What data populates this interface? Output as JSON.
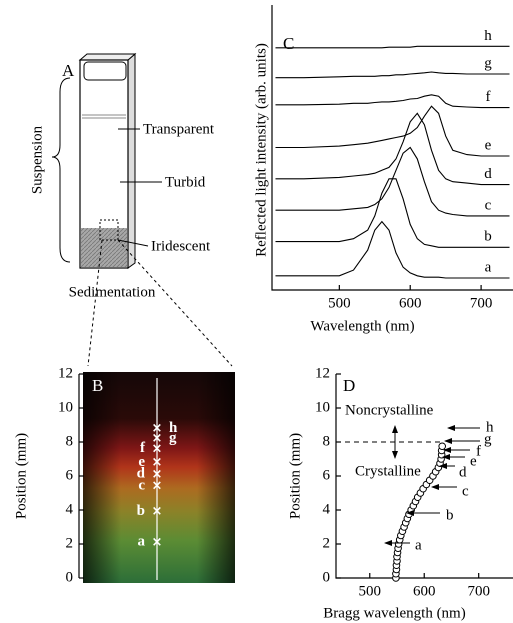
{
  "diagram": {
    "panel_label": "A",
    "transparent": "Transparent",
    "turbid": "Turbid",
    "iridescent": "Iridescent",
    "suspension": "Suspension",
    "sedimentation": "Sedimentation"
  },
  "chart_data": [
    {
      "type": "image",
      "panel_label": "B",
      "ylabel": "Position (mm)",
      "ylim": [
        0,
        12
      ],
      "yticks": [
        0,
        2,
        4,
        6,
        8,
        10,
        12
      ],
      "categories": [
        "a",
        "b",
        "c",
        "d",
        "e",
        "f",
        "g",
        "h"
      ],
      "values": [
        2.1,
        3.9,
        5.4,
        6.1,
        6.8,
        7.6,
        8.2,
        8.8
      ]
    },
    {
      "type": "line",
      "panel_label": "C",
      "xlabel": "Wavelength (nm)",
      "ylabel": "Reflected light intensity (arb. units)",
      "xlim": [
        405,
        745
      ],
      "xticks": [
        500,
        600,
        700
      ],
      "ylim": [
        0,
        10
      ],
      "x": [
        410,
        450,
        500,
        520,
        540,
        550,
        560,
        570,
        580,
        590,
        600,
        610,
        620,
        630,
        640,
        650,
        660,
        680,
        700,
        740
      ],
      "series": [
        {
          "name": "a",
          "color": "#000000",
          "values": [
            0.5,
            0.5,
            0.5,
            0.7,
            1.4,
            2.1,
            2.4,
            2.1,
            1.3,
            0.8,
            0.6,
            0.5,
            0.45,
            0.45,
            0.45,
            0.42,
            0.42,
            0.42,
            0.42,
            0.42
          ]
        },
        {
          "name": "b",
          "color": "#000000",
          "values": [
            1.7,
            1.7,
            1.7,
            1.8,
            2.1,
            2.6,
            3.4,
            3.9,
            3.9,
            3.2,
            2.3,
            1.8,
            1.6,
            1.55,
            1.5,
            1.5,
            1.5,
            1.5,
            1.5,
            1.5
          ]
        },
        {
          "name": "c",
          "color": "#000000",
          "values": [
            2.8,
            2.8,
            2.8,
            2.85,
            2.9,
            3.0,
            3.2,
            3.6,
            4.2,
            4.8,
            5.0,
            4.6,
            3.8,
            3.1,
            2.8,
            2.7,
            2.65,
            2.6,
            2.6,
            2.6
          ]
        },
        {
          "name": "d",
          "color": "#000000",
          "values": [
            3.9,
            3.9,
            3.95,
            4.0,
            4.05,
            4.1,
            4.2,
            4.3,
            4.6,
            5.2,
            5.9,
            6.2,
            5.8,
            4.9,
            4.2,
            3.9,
            3.8,
            3.75,
            3.7,
            3.7
          ]
        },
        {
          "name": "e",
          "color": "#000000",
          "values": [
            5.0,
            5.0,
            5.05,
            5.1,
            5.15,
            5.2,
            5.25,
            5.3,
            5.35,
            5.4,
            5.5,
            5.7,
            6.1,
            6.45,
            6.2,
            5.4,
            4.9,
            4.75,
            4.7,
            4.7
          ]
        },
        {
          "name": "f",
          "color": "#000000",
          "values": [
            6.5,
            6.5,
            6.52,
            6.55,
            6.55,
            6.58,
            6.6,
            6.6,
            6.62,
            6.65,
            6.7,
            6.72,
            6.8,
            6.85,
            6.8,
            6.55,
            6.45,
            6.42,
            6.4,
            6.4
          ]
        },
        {
          "name": "g",
          "color": "#000000",
          "values": [
            7.45,
            7.45,
            7.48,
            7.5,
            7.5,
            7.5,
            7.52,
            7.52,
            7.55,
            7.55,
            7.58,
            7.6,
            7.62,
            7.65,
            7.62,
            7.6,
            7.6,
            7.58,
            7.58,
            7.58
          ]
        },
        {
          "name": "h",
          "color": "#000000",
          "values": [
            8.5,
            8.5,
            8.5,
            8.5,
            8.5,
            8.5,
            8.5,
            8.52,
            8.52,
            8.52,
            8.52,
            8.55,
            8.55,
            8.55,
            8.55,
            8.55,
            8.55,
            8.55,
            8.55,
            8.55
          ]
        }
      ]
    },
    {
      "type": "scatter",
      "panel_label": "D",
      "xlabel": "Bragg wavelength (nm)",
      "ylabel": "Position (mm)",
      "xlim": [
        438,
        763
      ],
      "xticks": [
        500,
        600,
        700
      ],
      "ylim": [
        0,
        12
      ],
      "yticks": [
        0,
        2,
        4,
        6,
        8,
        10,
        12
      ],
      "x": [
        548,
        548,
        549,
        549,
        550,
        550,
        551,
        552,
        553,
        555,
        557,
        560,
        563,
        566,
        569,
        572,
        576,
        580,
        584,
        588,
        593,
        598,
        604,
        610,
        616,
        621,
        626,
        629,
        631,
        632,
        632,
        633
      ],
      "values": [
        0,
        0.25,
        0.5,
        0.75,
        1,
        1.25,
        1.5,
        1.75,
        2,
        2.25,
        2.5,
        2.75,
        3,
        3.25,
        3.5,
        3.75,
        4,
        4.25,
        4.5,
        4.75,
        5,
        5.25,
        5.5,
        5.75,
        6,
        6.25,
        6.5,
        6.75,
        7,
        7.25,
        7.5,
        7.75
      ],
      "boundary": 8,
      "upper_label": "Noncrystalline",
      "lower_label": "Crystalline",
      "arrow_labels": [
        "a",
        "b",
        "c",
        "d",
        "e",
        "f",
        "g",
        "h"
      ]
    }
  ]
}
